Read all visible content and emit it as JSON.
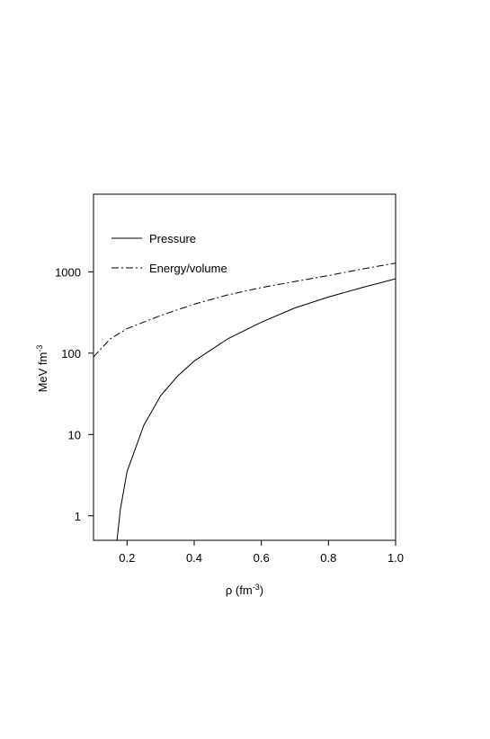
{
  "chart_data": {
    "type": "line",
    "x_label": [
      "ρ (fm",
      "-3",
      ")"
    ],
    "y_label": [
      "MeV fm",
      "-3"
    ],
    "y_log": true,
    "xlim": [
      0.1,
      1.0
    ],
    "ylim": [
      0.5,
      9000
    ],
    "xticks": [
      0.2,
      0.4,
      0.6,
      0.8,
      {
        "value": 1.0,
        "label": "1.0"
      }
    ],
    "yticks": [
      1,
      10,
      100,
      1000
    ],
    "legend": "upper left",
    "series": [
      {
        "name": "Pressure",
        "color": "#000000",
        "style": "solid",
        "x": [
          0.17,
          0.18,
          0.2,
          0.25,
          0.3,
          0.35,
          0.4,
          0.5,
          0.6,
          0.7,
          0.8,
          0.9,
          1.0
        ],
        "values": [
          0.5,
          1.2,
          3.5,
          13,
          30,
          52,
          80,
          150,
          240,
          360,
          490,
          640,
          820
        ]
      },
      {
        "name": "Energy/volume",
        "color": "#000000",
        "style": "dashdot",
        "x": [
          0.1,
          0.15,
          0.2,
          0.3,
          0.4,
          0.5,
          0.6,
          0.7,
          0.8,
          0.9,
          1.0
        ],
        "values": [
          90,
          150,
          200,
          290,
          400,
          520,
          640,
          760,
          900,
          1080,
          1280
        ]
      }
    ]
  }
}
